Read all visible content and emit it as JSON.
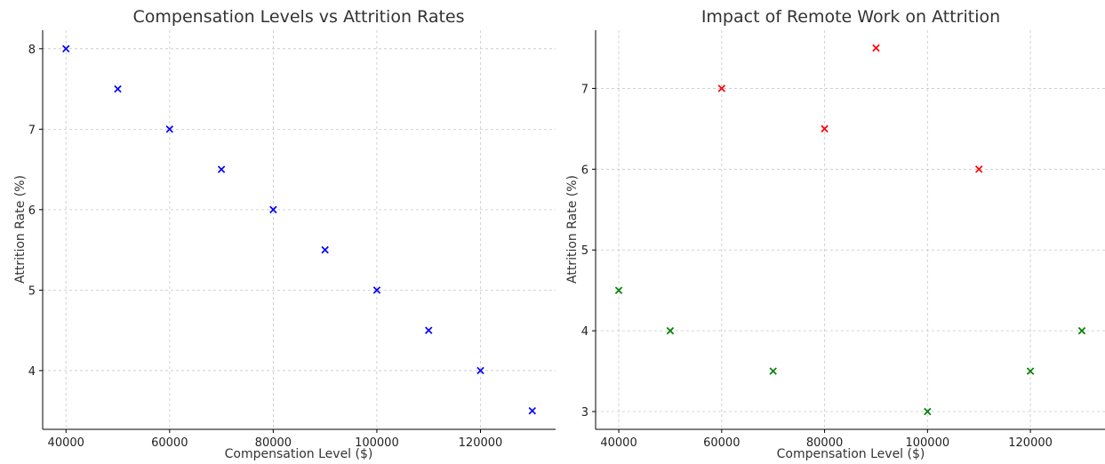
{
  "chart_data": [
    {
      "type": "scatter",
      "title": "Compensation Levels vs Attrition Rates",
      "xlabel": "Compensation Level ($)",
      "ylabel": "Attrition Rate (%)",
      "xlim": [
        35500,
        134500
      ],
      "ylim": [
        3.27,
        8.23
      ],
      "xticks": [
        40000,
        60000,
        80000,
        100000,
        120000
      ],
      "yticks": [
        4,
        5,
        6,
        7,
        8
      ],
      "grid": true,
      "marker": "x",
      "series": [
        {
          "color": "#0000ff",
          "points": [
            [
              40000,
              8.0
            ],
            [
              50000,
              7.5
            ],
            [
              60000,
              7.0
            ],
            [
              70000,
              6.5
            ],
            [
              80000,
              6.0
            ],
            [
              90000,
              5.5
            ],
            [
              100000,
              5.0
            ],
            [
              110000,
              4.5
            ],
            [
              120000,
              4.0
            ],
            [
              130000,
              3.5
            ]
          ]
        }
      ]
    },
    {
      "type": "scatter",
      "title": "Impact of Remote Work on Attrition",
      "xlabel": "Compensation Level ($)",
      "ylabel": "Attrition Rate (%)",
      "xlim": [
        35500,
        134500
      ],
      "ylim": [
        2.78,
        7.72
      ],
      "xticks": [
        40000,
        60000,
        80000,
        100000,
        120000
      ],
      "yticks": [
        3,
        4,
        5,
        6,
        7
      ],
      "grid": true,
      "marker": "x",
      "series": [
        {
          "color": "#ff0000",
          "points": [
            [
              60000,
              7.0
            ],
            [
              80000,
              6.5
            ],
            [
              90000,
              7.5
            ],
            [
              110000,
              6.0
            ]
          ]
        },
        {
          "color": "#008000",
          "points": [
            [
              40000,
              4.5
            ],
            [
              50000,
              4.0
            ],
            [
              70000,
              3.5
            ],
            [
              100000,
              3.0
            ],
            [
              120000,
              3.5
            ],
            [
              130000,
              4.0
            ]
          ]
        }
      ]
    }
  ]
}
